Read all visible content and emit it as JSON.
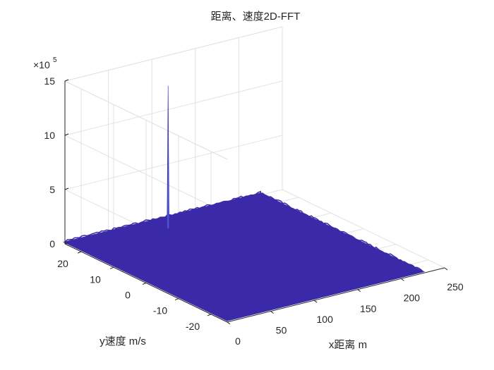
{
  "chart_data": {
    "type": "surface",
    "title": "距离、速度2D-FFT",
    "xlabel": "x距离 m",
    "ylabel": "y速度 m/s",
    "zlabel": "",
    "z_exponent": "×10",
    "z_exponent_power": "5",
    "xlim": [
      0,
      250
    ],
    "ylim": [
      -25,
      25
    ],
    "zlim": [
      0,
      15
    ],
    "x_ticks": [
      0,
      50,
      100,
      150,
      200,
      250
    ],
    "y_ticks": [
      -20,
      -10,
      0,
      10,
      20
    ],
    "z_ticks": [
      0,
      5,
      10,
      15
    ],
    "x_tick_labels": [
      "0",
      "50",
      "100",
      "150",
      "200",
      "250"
    ],
    "y_tick_labels": [
      "-20",
      "-10",
      "0",
      "10",
      "20"
    ],
    "z_tick_labels": [
      "0",
      "5",
      "10",
      "15"
    ],
    "grid": true,
    "surface_color": "#3a2aa8",
    "data_extent": {
      "x": [
        0,
        225
      ],
      "y": [
        -25,
        25
      ]
    },
    "noise_floor": 0.15,
    "peak": {
      "x": 100,
      "y": 20,
      "z": 13.3
    }
  }
}
